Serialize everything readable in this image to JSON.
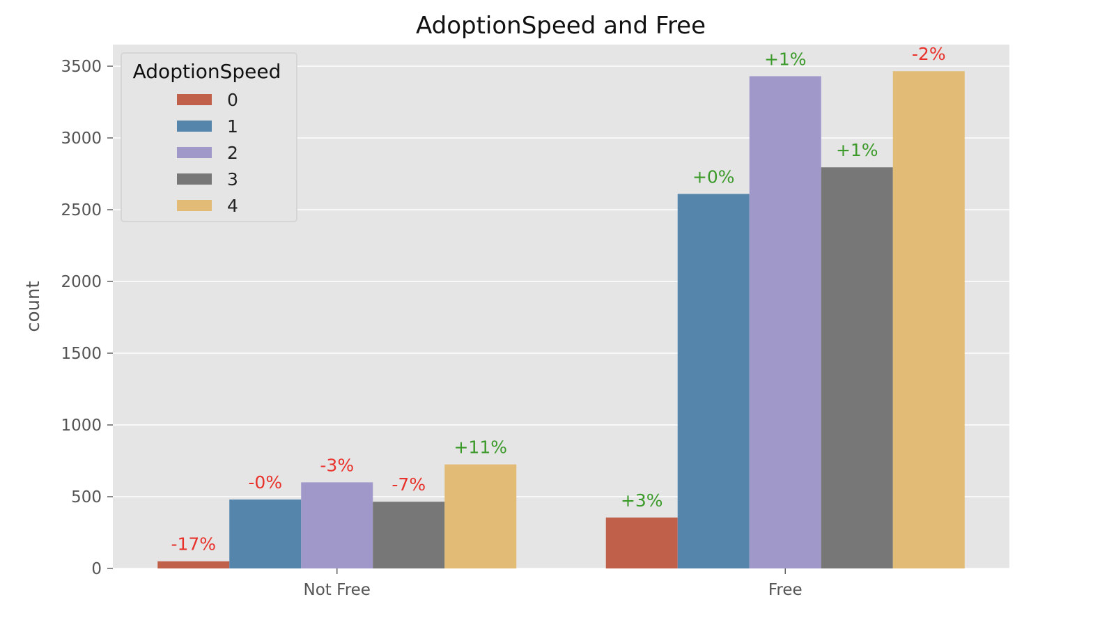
{
  "chart_data": {
    "type": "bar",
    "title": "AdoptionSpeed and Free",
    "xlabel": "",
    "ylabel": "count",
    "ylim": [
      0,
      3600
    ],
    "yticks": [
      0,
      500,
      1000,
      1500,
      2000,
      2500,
      3000,
      3500
    ],
    "categories": [
      "Not Free",
      "Free"
    ],
    "grid": true,
    "legend": {
      "title": "AdoptionSpeed",
      "placement": "top-left"
    },
    "series": [
      {
        "name": "0",
        "color": "#c1604a",
        "values": [
          50,
          355
        ],
        "labels": [
          "-17%",
          "+3%"
        ],
        "label_colors": [
          "#e8312a",
          "#3b9a2a"
        ]
      },
      {
        "name": "1",
        "color": "#5585ab",
        "values": [
          480,
          2610
        ],
        "labels": [
          "-0%",
          "+0%"
        ],
        "label_colors": [
          "#e8312a",
          "#3b9a2a"
        ]
      },
      {
        "name": "2",
        "color": "#9f98c9",
        "values": [
          600,
          3430
        ],
        "labels": [
          "-3%",
          "+1%"
        ],
        "label_colors": [
          "#e8312a",
          "#3b9a2a"
        ]
      },
      {
        "name": "3",
        "color": "#777777",
        "values": [
          465,
          2795
        ],
        "labels": [
          "-7%",
          "+1%"
        ],
        "label_colors": [
          "#e8312a",
          "#3b9a2a"
        ]
      },
      {
        "name": "4",
        "color": "#e2bc77",
        "values": [
          725,
          3465
        ],
        "labels": [
          "+11%",
          "-2%"
        ],
        "label_colors": [
          "#3b9a2a",
          "#e8312a"
        ]
      }
    ]
  }
}
